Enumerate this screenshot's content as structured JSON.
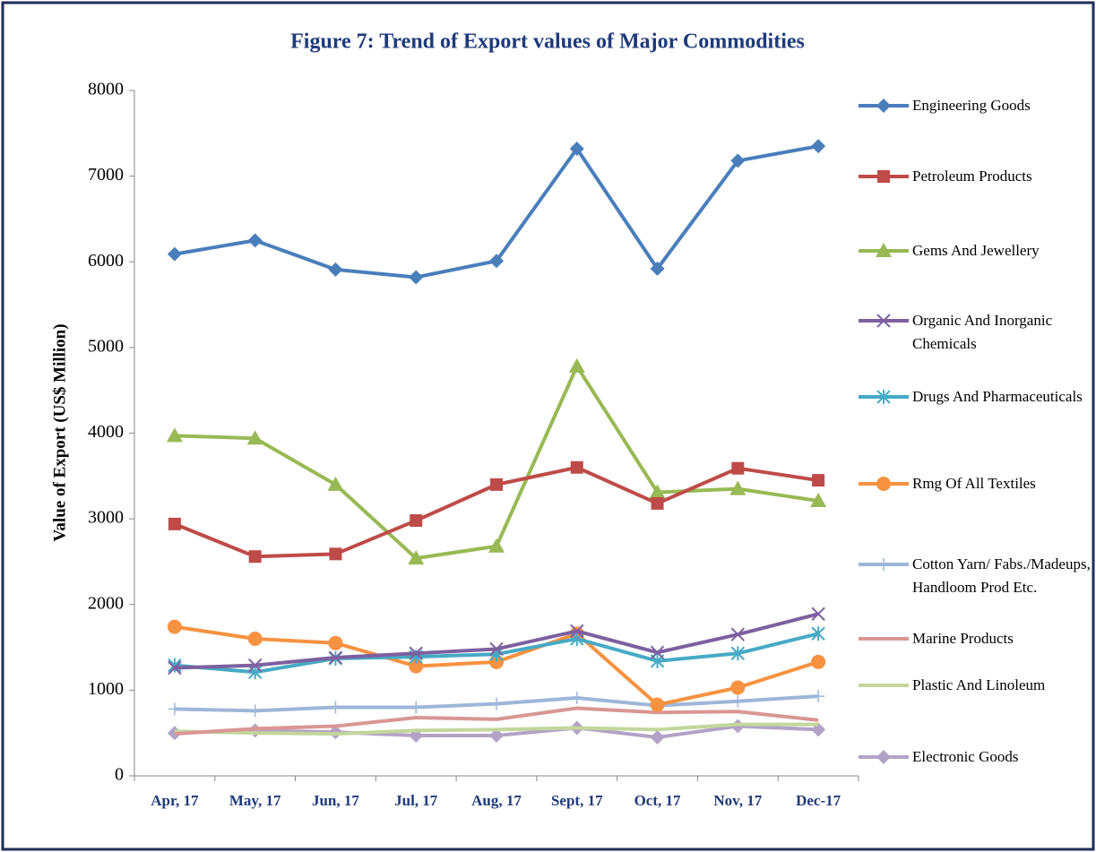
{
  "chart_data": {
    "type": "line",
    "title": "Figure 7: Trend of Export values of Major Commodities",
    "y_label": "Value of Export (US$ Million)",
    "categories": [
      "Apr, 17",
      "May, 17",
      "Jun, 17",
      "Jul, 17",
      "Aug, 17",
      "Sept, 17",
      "Oct, 17",
      "Nov, 17",
      "Dec-17"
    ],
    "ylim": [
      0,
      8000
    ],
    "yticks": [
      0,
      1000,
      2000,
      3000,
      4000,
      5000,
      6000,
      7000,
      8000
    ],
    "series": [
      {
        "name": "Engineering Goods",
        "color": "#4a7ebb",
        "marker": "diamond",
        "values": [
          6090,
          6250,
          5910,
          5820,
          6010,
          7320,
          5920,
          7180,
          7350
        ]
      },
      {
        "name": "Petroleum Products",
        "color": "#be4b48",
        "marker": "square",
        "values": [
          2940,
          2560,
          2590,
          2980,
          3400,
          3600,
          3180,
          3590,
          3450
        ]
      },
      {
        "name": "Gems And Jewellery",
        "color": "#98b954",
        "marker": "triangle",
        "values": [
          3970,
          3940,
          3400,
          2540,
          2680,
          4780,
          3310,
          3350,
          3210
        ]
      },
      {
        "name": "Organic And Inorganic Chemicals",
        "color": "#7d60a0",
        "marker": "x",
        "values": [
          1260,
          1290,
          1380,
          1430,
          1480,
          1690,
          1440,
          1650,
          1890
        ]
      },
      {
        "name": "Drugs And Pharmaceuticals",
        "color": "#46aac5",
        "marker": "asterisk",
        "values": [
          1290,
          1210,
          1370,
          1390,
          1420,
          1600,
          1340,
          1430,
          1660
        ]
      },
      {
        "name": "Rmg Of All Textiles",
        "color": "#f69240",
        "marker": "circle",
        "values": [
          1740,
          1600,
          1550,
          1280,
          1330,
          1660,
          830,
          1030,
          1330
        ]
      },
      {
        "name": "Cotton Yarn/ Fabs./Madeups, Handloom Prod Etc.",
        "color": "#9eb6d8",
        "marker": "plus",
        "values": [
          780,
          760,
          800,
          800,
          840,
          910,
          820,
          870,
          930
        ]
      },
      {
        "name": "Marine Products",
        "color": "#d99694",
        "marker": "none",
        "values": [
          490,
          550,
          580,
          680,
          660,
          790,
          740,
          750,
          650
        ]
      },
      {
        "name": "Plastic And Linoleum",
        "color": "#c3d69b",
        "marker": "none",
        "values": [
          520,
          500,
          490,
          530,
          540,
          560,
          540,
          600,
          600
        ]
      },
      {
        "name": "Electronic Goods",
        "color": "#b3a2c7",
        "marker": "diamond",
        "values": [
          500,
          530,
          510,
          470,
          470,
          560,
          450,
          580,
          540
        ]
      }
    ]
  }
}
